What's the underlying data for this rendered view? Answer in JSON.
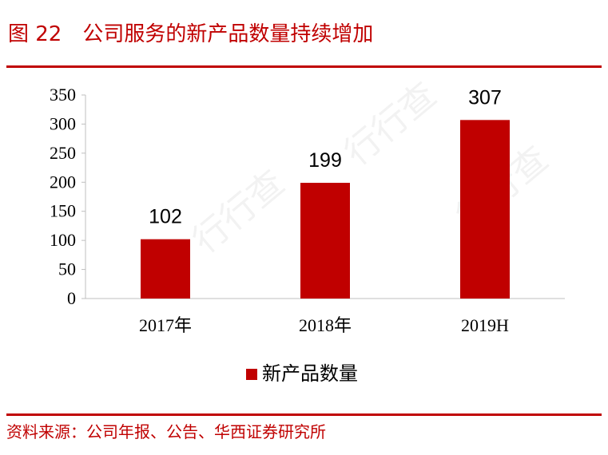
{
  "figure": {
    "number": "图 22",
    "title": "公司服务的新产品数量持续增加",
    "source": "资料来源：公司年报、公告、华西证券研究所"
  },
  "watermark": {
    "text": "行行查"
  },
  "colors": {
    "accent": "#c00000",
    "bar": "#c00000",
    "axis": "#bfbfbf",
    "text": "#000000"
  },
  "chart_data": {
    "type": "bar",
    "categories": [
      "2017年",
      "2018年",
      "2019H"
    ],
    "series": [
      {
        "name": "新产品数量",
        "values": [
          102,
          199,
          307
        ]
      }
    ],
    "ylim": [
      0,
      350
    ],
    "yticks": [
      0,
      50,
      100,
      150,
      200,
      250,
      300,
      350
    ],
    "data_labels": true,
    "grid": false,
    "legend": "bottom"
  }
}
